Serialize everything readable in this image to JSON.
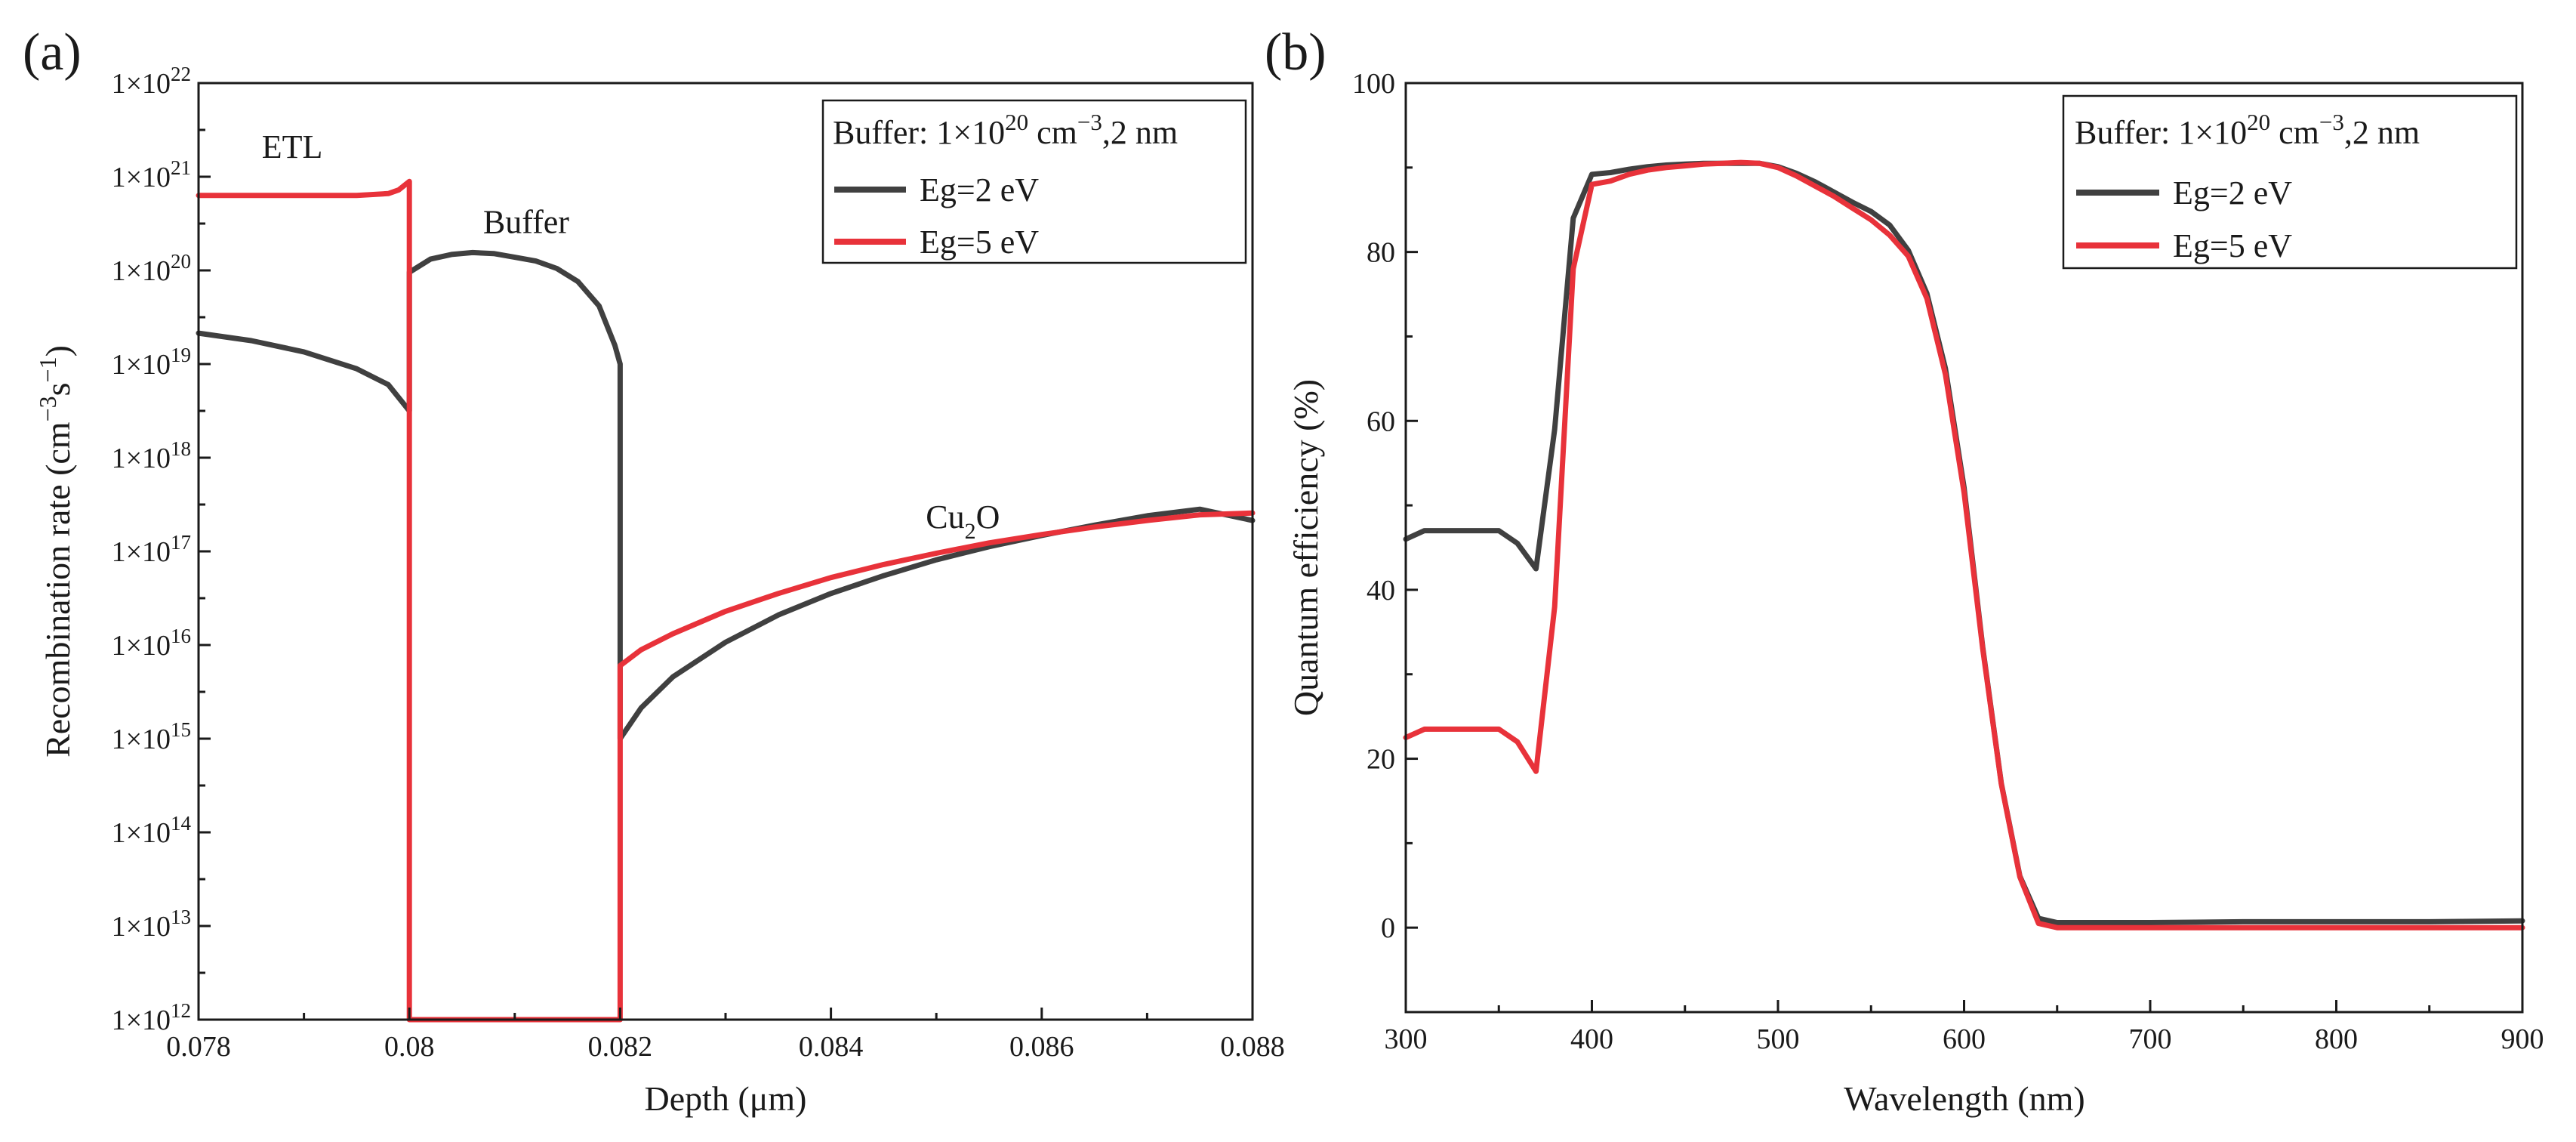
{
  "colors": {
    "eg2": "#404040",
    "eg5": "#e8323a",
    "axis": "#1a1a1a"
  },
  "chart_data": [
    {
      "id": "a",
      "panel_label": "(a)",
      "type": "line",
      "yscale": "log",
      "xlabel": "Depth (μm)",
      "ylabel_main": "Recombination rate (cm",
      "ylabel_sup1": "−3",
      "ylabel_mid": "s",
      "ylabel_sup2": "−1",
      "ylabel_end": ")",
      "xlim": [
        0.078,
        0.088
      ],
      "ylim_exp": [
        12,
        22
      ],
      "xticks": [
        0.078,
        0.08,
        0.082,
        0.084,
        0.086,
        0.088
      ],
      "xtick_labels": [
        "0.078",
        "0.08",
        "0.082",
        "0.084",
        "0.086",
        "0.088"
      ],
      "yticks_exp": [
        12,
        13,
        14,
        15,
        16,
        17,
        18,
        19,
        20,
        21,
        22
      ],
      "ytick_prefix": "1×10",
      "legend": {
        "title_pre": "Buffer: 1×10",
        "title_sup": "20",
        "title_mid": " cm",
        "title_sup2": "−3",
        "title_post": ",2 nm",
        "position": "top-right"
      },
      "annotations": [
        {
          "key": "etl",
          "text": "ETL",
          "x": 0.0786,
          "y_exp": 21.2
        },
        {
          "key": "buffer",
          "text": "Buffer",
          "x": 0.0807,
          "y_exp": 20.4
        },
        {
          "key": "cu2o",
          "text": "Cu",
          "sub": "2",
          "post": "O",
          "x": 0.0849,
          "y_exp": 17.25
        }
      ],
      "series": [
        {
          "name": "Eg=2 eV",
          "color_key": "eg2",
          "x": [
            0.078,
            0.0785,
            0.079,
            0.0795,
            0.0798,
            0.08,
            0.08,
            0.0802,
            0.0804,
            0.0806,
            0.0808,
            0.081,
            0.0812,
            0.0814,
            0.0816,
            0.0818,
            0.08195,
            0.082,
            0.082,
            0.0822,
            0.0825,
            0.083,
            0.0835,
            0.084,
            0.0845,
            0.085,
            0.0855,
            0.086,
            0.0865,
            0.087,
            0.0875,
            0.088
          ],
          "y_exp": [
            19.33,
            19.25,
            19.13,
            18.95,
            18.78,
            18.5,
            19.98,
            20.12,
            20.17,
            20.19,
            20.18,
            20.14,
            20.1,
            20.02,
            19.88,
            19.62,
            19.2,
            19.0,
            15.0,
            15.33,
            15.66,
            16.03,
            16.32,
            16.55,
            16.74,
            16.91,
            17.05,
            17.17,
            17.28,
            17.38,
            17.45,
            17.33
          ]
        },
        {
          "name": "Eg=5 eV",
          "color_key": "eg5",
          "x": [
            0.078,
            0.079,
            0.0795,
            0.0798,
            0.0799,
            0.08,
            0.08,
            0.082,
            0.082,
            0.0822,
            0.0825,
            0.083,
            0.0835,
            0.084,
            0.0845,
            0.085,
            0.0855,
            0.086,
            0.0865,
            0.087,
            0.0875,
            0.088
          ],
          "y_exp": [
            20.8,
            20.8,
            20.8,
            20.82,
            20.86,
            20.95,
            12.0,
            12.0,
            15.78,
            15.95,
            16.12,
            16.36,
            16.55,
            16.72,
            16.86,
            16.98,
            17.09,
            17.18,
            17.26,
            17.33,
            17.39,
            17.41
          ]
        }
      ]
    },
    {
      "id": "b",
      "panel_label": "(b)",
      "type": "line",
      "xlabel": "Wavelength (nm)",
      "ylabel": "Quantum efficiency (%)",
      "xlim": [
        300,
        900
      ],
      "ylim": [
        -10,
        100
      ],
      "xticks": [
        300,
        400,
        500,
        600,
        700,
        800,
        900
      ],
      "xtick_labels": [
        "300",
        "400",
        "500",
        "600",
        "700",
        "800",
        "900"
      ],
      "yticks": [
        0,
        20,
        40,
        60,
        80,
        100
      ],
      "ytick_labels": [
        "0",
        "20",
        "40",
        "60",
        "80",
        "100"
      ],
      "legend": {
        "title_pre": "Buffer: 1×10",
        "title_sup": "20",
        "title_mid": " cm",
        "title_sup2": "−3",
        "title_post": ",2 nm",
        "position": "top-right"
      },
      "series": [
        {
          "name": "Eg=2 eV",
          "color_key": "eg2",
          "x": [
            300,
            310,
            320,
            330,
            340,
            350,
            360,
            370,
            380,
            390,
            400,
            410,
            420,
            430,
            440,
            450,
            460,
            470,
            480,
            490,
            500,
            510,
            520,
            530,
            540,
            550,
            560,
            570,
            580,
            590,
            600,
            610,
            620,
            630,
            640,
            650,
            660,
            680,
            700,
            750,
            800,
            850,
            900
          ],
          "y": [
            46,
            47,
            47,
            47,
            47,
            47,
            45.5,
            42.5,
            59,
            84,
            89.2,
            89.4,
            89.8,
            90.1,
            90.3,
            90.4,
            90.5,
            90.5,
            90.5,
            90.5,
            90.1,
            89.3,
            88.3,
            87.1,
            85.9,
            84.8,
            83.2,
            80.2,
            75.1,
            66.2,
            52.1,
            33.2,
            17.1,
            6.1,
            1.1,
            0.6,
            0.6,
            0.6,
            0.6,
            0.7,
            0.7,
            0.7,
            0.8
          ]
        },
        {
          "name": "Eg=5 eV",
          "color_key": "eg5",
          "x": [
            300,
            310,
            320,
            330,
            340,
            350,
            360,
            370,
            380,
            390,
            400,
            410,
            420,
            430,
            440,
            450,
            460,
            470,
            480,
            490,
            500,
            510,
            520,
            530,
            540,
            550,
            560,
            570,
            580,
            590,
            600,
            610,
            620,
            630,
            640,
            650,
            660,
            680,
            700,
            750,
            800,
            850,
            900
          ],
          "y": [
            22.5,
            23.5,
            23.5,
            23.5,
            23.5,
            23.5,
            22,
            18.5,
            38,
            78,
            88,
            88.4,
            89.2,
            89.7,
            90,
            90.2,
            90.4,
            90.5,
            90.6,
            90.5,
            90,
            89,
            87.8,
            86.6,
            85.2,
            83.8,
            82,
            79.5,
            74.5,
            65.5,
            51.5,
            33,
            17,
            6,
            0.5,
            0,
            0,
            0,
            0,
            0,
            0,
            0,
            0
          ]
        }
      ]
    }
  ]
}
